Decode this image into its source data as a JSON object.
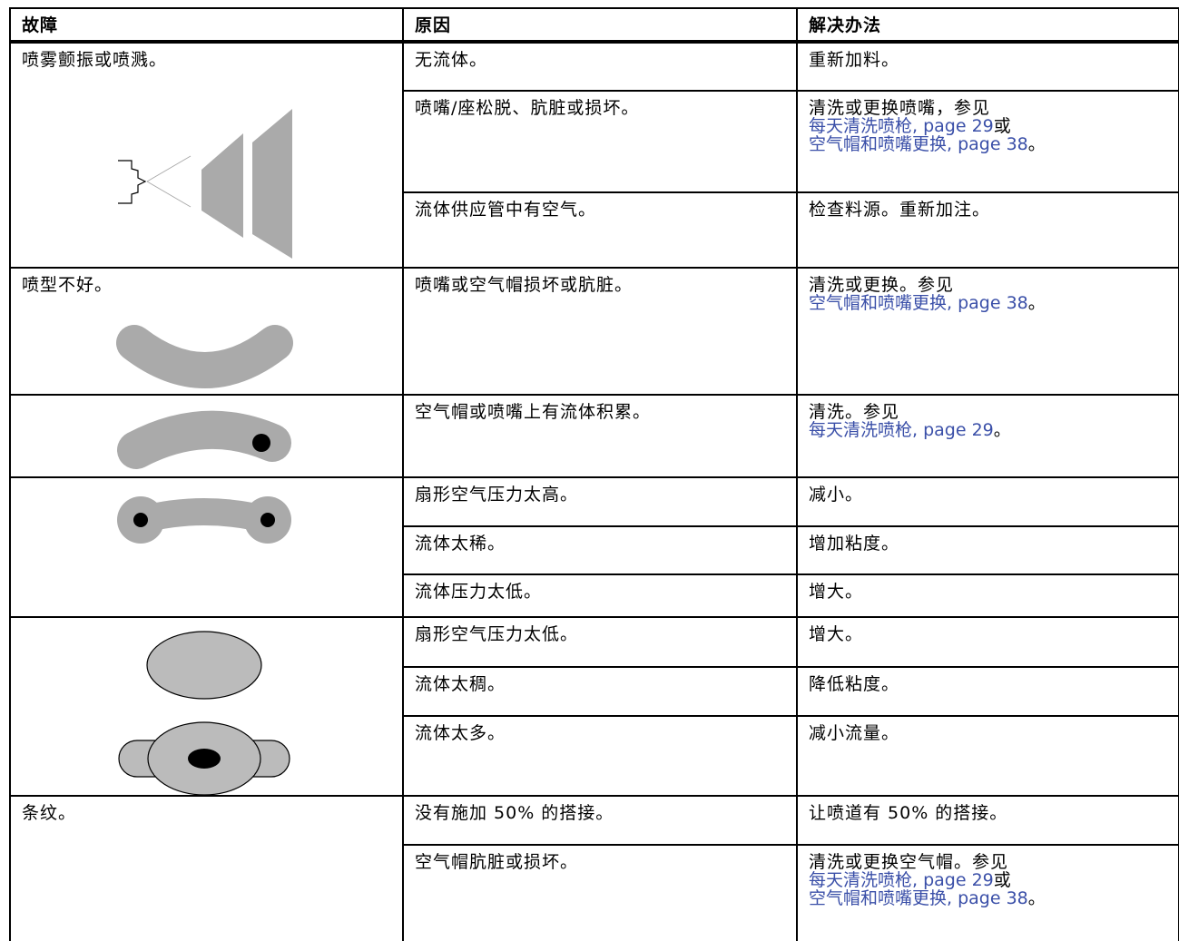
{
  "header": [
    "故障",
    "原因",
    "解决办法"
  ],
  "groups": [
    {
      "problem": "喷雾颤振或喷溅。",
      "causes": [
        {
          "cause": "无流体。",
          "solution": [
            "重新加料。"
          ]
        },
        {
          "cause": "喷嘴/座松脱、肮脏或损坏。",
          "solution": [
            "清洗或更换喷嘴，参见",
            {
              "link": "每天清洗喷枪, page 29"
            },
            "或",
            {
              "link": "空气帽和喷嘴更换, page 38"
            },
            "。"
          ]
        },
        {
          "cause": "流体供应管中有空气。",
          "solution": [
            "检查料源。重新加注。"
          ]
        }
      ]
    },
    {
      "problem": "喷型不好。",
      "causes": [
        {
          "cause": "喷嘴或空气帽损坏或肮脏。",
          "solution": [
            "清洗或更换。参见",
            {
              "link": "空气帽和喷嘴更换, page 38"
            },
            "。"
          ]
        }
      ]
    },
    {
      "causes": [
        {
          "cause": "空气帽或喷嘴上有流体积累。",
          "solution": [
            "清洗。参见",
            {
              "link": "每天清洗喷枪, page 29"
            },
            "。"
          ]
        }
      ]
    },
    {
      "causes": [
        {
          "cause": "扇形空气压力太高。",
          "solution": [
            "减小。"
          ]
        },
        {
          "cause": "流体太稀。",
          "solution": [
            "增加粘度。"
          ]
        },
        {
          "cause": "流体压力太低。",
          "solution": [
            "增大。"
          ]
        }
      ]
    },
    {
      "causes": [
        {
          "cause": "扇形空气压力太低。",
          "solution": [
            "增大。"
          ]
        },
        {
          "cause": "流体太稠。",
          "solution": [
            "降低粘度。"
          ]
        },
        {
          "cause": "流体太多。",
          "solution": [
            "减小流量。"
          ]
        }
      ]
    },
    {
      "problem": "条纹。",
      "causes": [
        {
          "cause": "没有施加 50% 的搭接。",
          "solution": [
            "让喷道有 50% 的搭接。"
          ]
        },
        {
          "cause": "空气帽肮脏或损坏。",
          "solution": [
            "清洗或更换空气帽。参见",
            {
              "link": "每天清洗喷枪, page 29"
            },
            "或",
            {
              "link": "空气帽和喷嘴更换, page 38"
            },
            "。"
          ]
        }
      ]
    }
  ]
}
